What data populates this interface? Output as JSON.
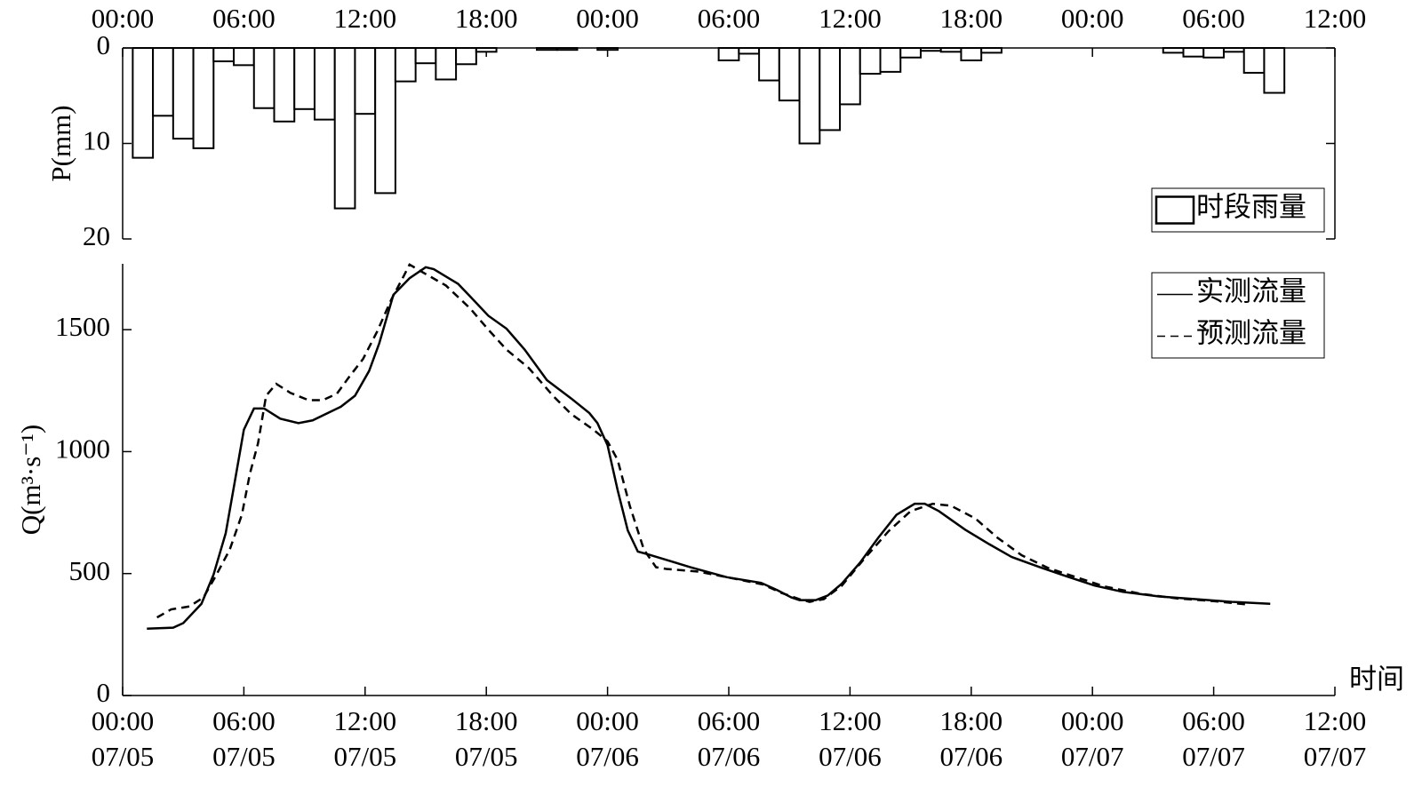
{
  "chart_data": [
    {
      "type": "bar",
      "ylabel": "P(mm)",
      "ylim": [
        0,
        20
      ],
      "yticks": [
        0,
        10,
        20
      ],
      "inverted": true,
      "xlim": [
        0,
        60
      ],
      "xticks": [
        {
          "value": 0,
          "label": "00:00"
        },
        {
          "value": 6,
          "label": "06:00"
        },
        {
          "value": 12,
          "label": "12:00"
        },
        {
          "value": 18,
          "label": "18:00"
        },
        {
          "value": 24,
          "label": "00:00"
        },
        {
          "value": 30,
          "label": "06:00"
        },
        {
          "value": 36,
          "label": "12:00"
        },
        {
          "value": 42,
          "label": "18:00"
        },
        {
          "value": 48,
          "label": "00:00"
        },
        {
          "value": 54,
          "label": "06:00"
        },
        {
          "value": 60,
          "label": "12:00"
        }
      ],
      "legend": "right",
      "series": [
        {
          "name": "时段雨量",
          "color": "#ffffff",
          "x": [
            1,
            2,
            3,
            4,
            5,
            6,
            7,
            8,
            9,
            10,
            11,
            12,
            13,
            14,
            15,
            16,
            17,
            18,
            21,
            22,
            24,
            30,
            31,
            32,
            33,
            34,
            35,
            36,
            37,
            38,
            39,
            40,
            41,
            42,
            43,
            52,
            53,
            54,
            55,
            56,
            57
          ],
          "values": [
            11.5,
            7.1,
            9.5,
            10.5,
            1.4,
            1.8,
            6.3,
            7.7,
            6.4,
            7.5,
            16.8,
            6.9,
            15.2,
            3.5,
            1.6,
            3.3,
            1.7,
            0.4,
            0.2,
            0.2,
            0.2,
            1.3,
            0.6,
            3.4,
            5.5,
            10.0,
            8.6,
            5.9,
            2.7,
            2.5,
            1.0,
            0.3,
            0.4,
            1.3,
            0.5,
            0.5,
            0.9,
            1.0,
            0.4,
            2.6,
            4.7
          ]
        }
      ]
    },
    {
      "type": "line",
      "ylabel": "Q(m³·s⁻¹)",
      "xlabel": "时间",
      "ylim": [
        0,
        1770
      ],
      "yticks": [
        0,
        500,
        1000,
        1500
      ],
      "xlim": [
        0,
        60
      ],
      "xticks": [
        {
          "value": 0,
          "label": "00:00"
        },
        {
          "value": 6,
          "label": "06:00"
        },
        {
          "value": 12,
          "label": "12:00"
        },
        {
          "value": 18,
          "label": "18:00"
        },
        {
          "value": 24,
          "label": "00:00"
        },
        {
          "value": 30,
          "label": "06:00"
        },
        {
          "value": 36,
          "label": "12:00"
        },
        {
          "value": 42,
          "label": "18:00"
        },
        {
          "value": 48,
          "label": "00:00"
        },
        {
          "value": 54,
          "label": "06:00"
        },
        {
          "value": 60,
          "label": "12:00"
        }
      ],
      "xtick_dates": [
        "07/05",
        "07/05",
        "07/05",
        "07/05",
        "07/06",
        "07/06",
        "07/06",
        "07/06",
        "07/07",
        "07/07",
        "07/07"
      ],
      "legend": "right",
      "series": [
        {
          "name": "实测流量",
          "color": "#000000",
          "dash": false,
          "x": [
            1.2,
            2.5,
            3,
            3.9,
            4.5,
            5.1,
            5.5,
            6,
            6.5,
            7,
            7.8,
            8.7,
            9.4,
            10.8,
            11.5,
            12.2,
            12.7,
            13.4,
            14.2,
            15,
            15.4,
            16.6,
            17.2,
            18.1,
            19,
            19.9,
            21,
            22.2,
            23.1,
            23.5,
            24,
            24.5,
            25,
            25.5,
            26,
            28.1,
            29.9,
            31.6,
            32.4,
            33.1,
            33.5,
            34.3,
            34.9,
            35.6,
            36.5,
            37.4,
            38.3,
            39.2,
            39.7,
            40.4,
            41.7,
            42.9,
            44,
            45.4,
            46.7,
            48.1,
            49.5,
            51.3,
            53.1,
            54.9,
            56.8
          ],
          "values": [
            274,
            278,
            297,
            376,
            496,
            665,
            853,
            1090,
            1177,
            1177,
            1135,
            1117,
            1128,
            1184,
            1229,
            1331,
            1444,
            1643,
            1711,
            1756,
            1748,
            1688,
            1636,
            1557,
            1504,
            1418,
            1293,
            1218,
            1158,
            1117,
            1026,
            842,
            677,
            590,
            579,
            526,
            485,
            462,
            432,
            402,
            391,
            391,
            410,
            459,
            545,
            647,
            741,
            786,
            786,
            756,
            680,
            620,
            568,
            526,
            489,
            451,
            425,
            406,
            395,
            384,
            376
          ]
        },
        {
          "name": "预测流量",
          "color": "#000000",
          "dash": true,
          "x": [
            1.7,
            2.4,
            3.3,
            4,
            4.6,
            5.3,
            5.9,
            6.3,
            6.7,
            7.1,
            7.6,
            8.3,
            9.2,
            9.9,
            10.6,
            11.2,
            11.9,
            12.6,
            13.3,
            13.9,
            14.2,
            14.9,
            16,
            17.2,
            18.1,
            19,
            20.1,
            21.3,
            22.2,
            23.3,
            24,
            24.5,
            25.1,
            25.8,
            26.4,
            26.9,
            28.5,
            30.4,
            31.7,
            32.6,
            33.5,
            34,
            34.7,
            35.6,
            36.7,
            37.9,
            39,
            40.1,
            41,
            42.2,
            43.3,
            44.5,
            45.8,
            47.2,
            48.6,
            50.4,
            52.2,
            54,
            55.8
          ],
          "values": [
            320,
            353,
            365,
            402,
            489,
            598,
            741,
            910,
            1034,
            1229,
            1278,
            1241,
            1211,
            1211,
            1237,
            1305,
            1380,
            1493,
            1624,
            1718,
            1767,
            1733,
            1681,
            1587,
            1500,
            1418,
            1343,
            1229,
            1154,
            1090,
            1042,
            966,
            778,
            598,
            526,
            519,
            508,
            477,
            455,
            421,
            395,
            384,
            395,
            451,
            560,
            673,
            756,
            786,
            778,
            726,
            647,
            575,
            523,
            485,
            447,
            417,
            398,
            387,
            372
          ]
        }
      ]
    }
  ]
}
